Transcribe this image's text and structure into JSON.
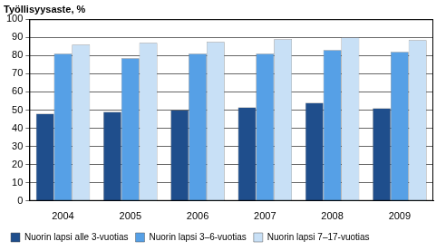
{
  "chart_data": {
    "type": "bar",
    "ylabel": "Työllisyysaste, %",
    "categories": [
      "2004",
      "2005",
      "2006",
      "2007",
      "2008",
      "2009"
    ],
    "series": [
      {
        "name": "Nuorin lapsi alle 3-vuotias",
        "color": "#1f4e8c",
        "values": [
          48,
          49,
          50,
          51.5,
          54,
          51
        ]
      },
      {
        "name": "Nuorin lapsi 3–6-vuotias",
        "color": "#56a0e6",
        "values": [
          81,
          78.5,
          81,
          81,
          83,
          82
        ]
      },
      {
        "name": "Nuorin lapsi 7–17-vuotias",
        "color": "#c8e0f6",
        "values": [
          86,
          87,
          87.5,
          89,
          90,
          88.5
        ]
      }
    ],
    "ylim": [
      0,
      100
    ],
    "yticks": [
      0,
      10,
      20,
      30,
      40,
      50,
      60,
      70,
      80,
      90,
      100
    ],
    "grid": true,
    "legend": "bottom"
  }
}
